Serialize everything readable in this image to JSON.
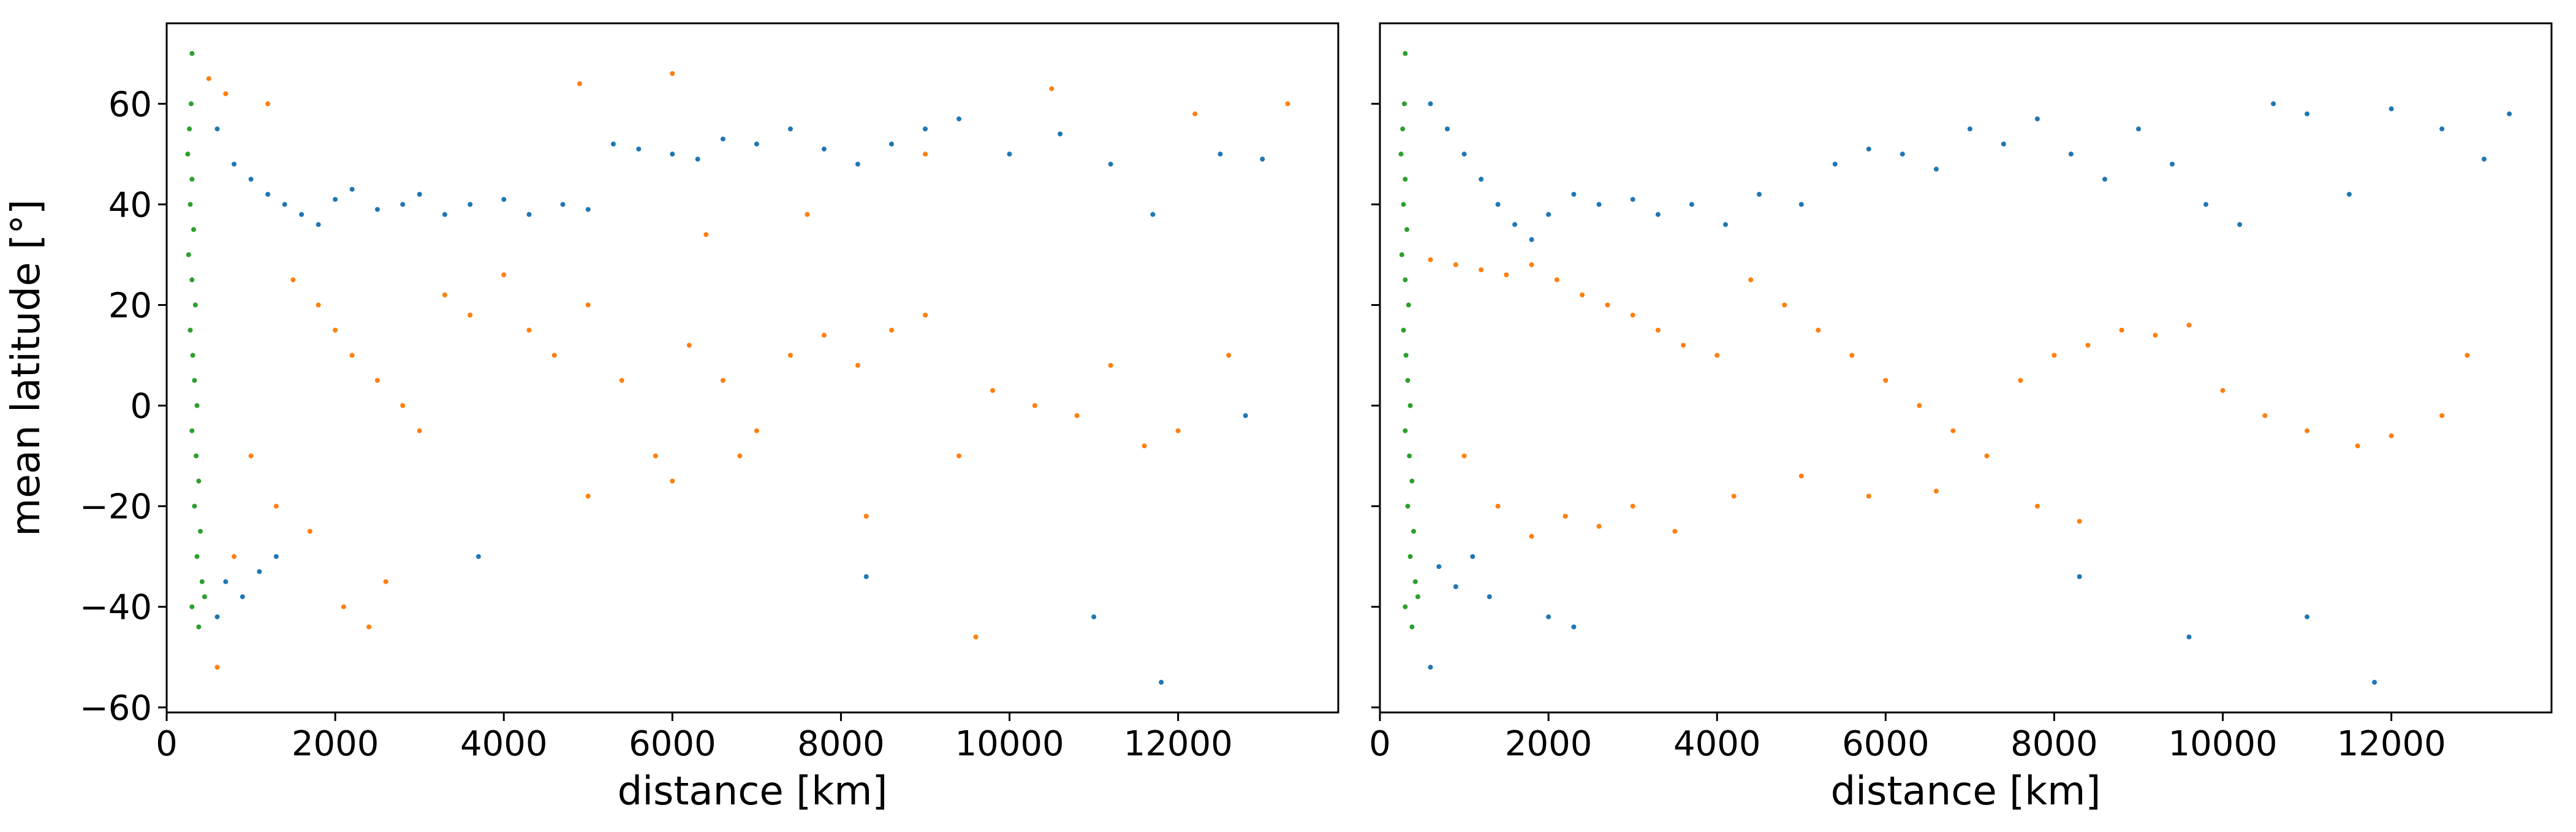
{
  "chart_data": [
    {
      "type": "scatter",
      "panel": "left",
      "xlabel": "distance [km]",
      "ylabel": "mean latitude [°]",
      "xlim": [
        0,
        13900
      ],
      "ylim": [
        -61,
        76
      ],
      "xticks": [
        0,
        2000,
        4000,
        6000,
        8000,
        10000,
        12000
      ],
      "yticks": [
        -60,
        -40,
        -20,
        0,
        20,
        40,
        60
      ],
      "xtick_labels": [
        "0",
        "2000",
        "4000",
        "6000",
        "8000",
        "10000",
        "12000"
      ],
      "ytick_labels": [
        "−60",
        "−40",
        "−20",
        "0",
        "20",
        "40",
        "60"
      ],
      "show_ytick_labels": true,
      "grid": false,
      "series": [
        {
          "color": "#1f77b4",
          "points": [
            [
              600,
              55
            ],
            [
              800,
              48
            ],
            [
              1000,
              45
            ],
            [
              1200,
              42
            ],
            [
              1400,
              40
            ],
            [
              1600,
              38
            ],
            [
              1800,
              36
            ],
            [
              2000,
              41
            ],
            [
              2200,
              43
            ],
            [
              2500,
              39
            ],
            [
              2800,
              40
            ],
            [
              3000,
              42
            ],
            [
              3300,
              38
            ],
            [
              3600,
              40
            ],
            [
              4000,
              41
            ],
            [
              4300,
              38
            ],
            [
              4700,
              40
            ],
            [
              5000,
              39
            ],
            [
              5300,
              52
            ],
            [
              5600,
              51
            ],
            [
              6000,
              50
            ],
            [
              6300,
              49
            ],
            [
              6600,
              53
            ],
            [
              7000,
              52
            ],
            [
              7400,
              55
            ],
            [
              7800,
              51
            ],
            [
              8200,
              48
            ],
            [
              8600,
              52
            ],
            [
              9000,
              55
            ],
            [
              9400,
              57
            ],
            [
              10000,
              50
            ],
            [
              10600,
              54
            ],
            [
              11200,
              48
            ],
            [
              11700,
              38
            ],
            [
              12500,
              50
            ],
            [
              13000,
              49
            ],
            [
              700,
              -35
            ],
            [
              900,
              -38
            ],
            [
              1100,
              -33
            ],
            [
              1300,
              -30
            ],
            [
              600,
              -42
            ],
            [
              8300,
              -34
            ],
            [
              11000,
              -42
            ],
            [
              11800,
              -55
            ],
            [
              12800,
              -2
            ],
            [
              3700,
              -30
            ]
          ]
        },
        {
          "color": "#ff7f0e",
          "points": [
            [
              500,
              65
            ],
            [
              700,
              62
            ],
            [
              1200,
              60
            ],
            [
              1500,
              25
            ],
            [
              1800,
              20
            ],
            [
              2000,
              15
            ],
            [
              2200,
              10
            ],
            [
              2500,
              5
            ],
            [
              2800,
              0
            ],
            [
              3000,
              -5
            ],
            [
              3300,
              22
            ],
            [
              3600,
              18
            ],
            [
              4000,
              26
            ],
            [
              4300,
              15
            ],
            [
              4600,
              10
            ],
            [
              5000,
              20
            ],
            [
              5400,
              5
            ],
            [
              5800,
              -10
            ],
            [
              6200,
              12
            ],
            [
              6600,
              5
            ],
            [
              7000,
              -5
            ],
            [
              7400,
              10
            ],
            [
              7800,
              14
            ],
            [
              8200,
              8
            ],
            [
              8600,
              15
            ],
            [
              9000,
              18
            ],
            [
              9400,
              -10
            ],
            [
              9800,
              3
            ],
            [
              10300,
              0
            ],
            [
              10800,
              -2
            ],
            [
              11200,
              8
            ],
            [
              11600,
              -8
            ],
            [
              12000,
              -5
            ],
            [
              12600,
              10
            ],
            [
              13300,
              60
            ],
            [
              1000,
              -10
            ],
            [
              1300,
              -20
            ],
            [
              1700,
              -25
            ],
            [
              2100,
              -40
            ],
            [
              2400,
              -44
            ],
            [
              800,
              -30
            ],
            [
              2600,
              -35
            ],
            [
              5000,
              -18
            ],
            [
              6000,
              -15
            ],
            [
              6800,
              -10
            ],
            [
              8300,
              -22
            ],
            [
              9600,
              -46
            ],
            [
              600,
              -52
            ],
            [
              10500,
              63
            ],
            [
              12200,
              58
            ],
            [
              7600,
              38
            ],
            [
              9000,
              50
            ],
            [
              6400,
              34
            ],
            [
              4900,
              64
            ],
            [
              6000,
              66
            ]
          ]
        },
        {
          "color": "#2ca02c",
          "points": [
            [
              250,
              50
            ],
            [
              300,
              45
            ],
            [
              280,
              40
            ],
            [
              320,
              35
            ],
            [
              260,
              30
            ],
            [
              300,
              25
            ],
            [
              340,
              20
            ],
            [
              280,
              15
            ],
            [
              310,
              10
            ],
            [
              330,
              5
            ],
            [
              360,
              0
            ],
            [
              300,
              -5
            ],
            [
              350,
              -10
            ],
            [
              380,
              -15
            ],
            [
              330,
              -20
            ],
            [
              400,
              -25
            ],
            [
              360,
              -30
            ],
            [
              420,
              -35
            ],
            [
              300,
              -40
            ],
            [
              380,
              -44
            ],
            [
              450,
              -38
            ],
            [
              270,
              55
            ],
            [
              290,
              60
            ],
            [
              300,
              70
            ]
          ]
        }
      ]
    },
    {
      "type": "scatter",
      "panel": "right",
      "xlabel": "distance [km]",
      "ylabel": "",
      "xlim": [
        0,
        13900
      ],
      "ylim": [
        -61,
        76
      ],
      "xticks": [
        0,
        2000,
        4000,
        6000,
        8000,
        10000,
        12000
      ],
      "yticks": [
        -60,
        -40,
        -20,
        0,
        20,
        40,
        60
      ],
      "xtick_labels": [
        "0",
        "2000",
        "4000",
        "6000",
        "8000",
        "10000",
        "12000"
      ],
      "ytick_labels": [],
      "show_ytick_labels": false,
      "grid": false,
      "series": [
        {
          "color": "#1f77b4",
          "points": [
            [
              600,
              60
            ],
            [
              800,
              55
            ],
            [
              1000,
              50
            ],
            [
              1200,
              45
            ],
            [
              1400,
              40
            ],
            [
              1600,
              36
            ],
            [
              1800,
              33
            ],
            [
              2000,
              38
            ],
            [
              2300,
              42
            ],
            [
              2600,
              40
            ],
            [
              3000,
              41
            ],
            [
              3300,
              38
            ],
            [
              3700,
              40
            ],
            [
              4100,
              36
            ],
            [
              4500,
              42
            ],
            [
              5000,
              40
            ],
            [
              5400,
              48
            ],
            [
              5800,
              51
            ],
            [
              6200,
              50
            ],
            [
              6600,
              47
            ],
            [
              7000,
              55
            ],
            [
              7400,
              52
            ],
            [
              7800,
              57
            ],
            [
              8200,
              50
            ],
            [
              8600,
              45
            ],
            [
              9000,
              55
            ],
            [
              9400,
              48
            ],
            [
              9800,
              40
            ],
            [
              10200,
              36
            ],
            [
              10600,
              60
            ],
            [
              11000,
              58
            ],
            [
              11500,
              42
            ],
            [
              12000,
              59
            ],
            [
              12600,
              55
            ],
            [
              13100,
              49
            ],
            [
              13400,
              58
            ],
            [
              700,
              -32
            ],
            [
              900,
              -36
            ],
            [
              1100,
              -30
            ],
            [
              1300,
              -38
            ],
            [
              2000,
              -42
            ],
            [
              2300,
              -44
            ],
            [
              8300,
              -34
            ],
            [
              9600,
              -46
            ],
            [
              11000,
              -42
            ],
            [
              11800,
              -55
            ],
            [
              600,
              -52
            ]
          ]
        },
        {
          "color": "#ff7f0e",
          "points": [
            [
              600,
              29
            ],
            [
              900,
              28
            ],
            [
              1200,
              27
            ],
            [
              1500,
              26
            ],
            [
              1800,
              28
            ],
            [
              2100,
              25
            ],
            [
              2400,
              22
            ],
            [
              2700,
              20
            ],
            [
              3000,
              18
            ],
            [
              3300,
              15
            ],
            [
              3600,
              12
            ],
            [
              4000,
              10
            ],
            [
              4400,
              25
            ],
            [
              4800,
              20
            ],
            [
              5200,
              15
            ],
            [
              5600,
              10
            ],
            [
              6000,
              5
            ],
            [
              6400,
              0
            ],
            [
              6800,
              -5
            ],
            [
              7200,
              -10
            ],
            [
              7600,
              5
            ],
            [
              8000,
              10
            ],
            [
              8400,
              12
            ],
            [
              8800,
              15
            ],
            [
              9200,
              14
            ],
            [
              9600,
              16
            ],
            [
              10000,
              3
            ],
            [
              10500,
              -2
            ],
            [
              11000,
              -5
            ],
            [
              11600,
              -8
            ],
            [
              12000,
              -6
            ],
            [
              12600,
              -2
            ],
            [
              12900,
              10
            ],
            [
              1000,
              -10
            ],
            [
              1400,
              -20
            ],
            [
              1800,
              -26
            ],
            [
              2200,
              -22
            ],
            [
              2600,
              -24
            ],
            [
              3000,
              -20
            ],
            [
              3500,
              -25
            ],
            [
              4200,
              -18
            ],
            [
              5000,
              -14
            ],
            [
              5800,
              -18
            ],
            [
              6600,
              -17
            ],
            [
              7800,
              -20
            ],
            [
              8300,
              -23
            ]
          ]
        },
        {
          "color": "#2ca02c",
          "points": [
            [
              250,
              50
            ],
            [
              300,
              45
            ],
            [
              280,
              40
            ],
            [
              320,
              35
            ],
            [
              260,
              30
            ],
            [
              300,
              25
            ],
            [
              340,
              20
            ],
            [
              280,
              15
            ],
            [
              310,
              10
            ],
            [
              330,
              5
            ],
            [
              360,
              0
            ],
            [
              300,
              -5
            ],
            [
              350,
              -10
            ],
            [
              380,
              -15
            ],
            [
              330,
              -20
            ],
            [
              400,
              -25
            ],
            [
              360,
              -30
            ],
            [
              420,
              -35
            ],
            [
              300,
              -40
            ],
            [
              380,
              -44
            ],
            [
              450,
              -38
            ],
            [
              270,
              55
            ],
            [
              290,
              60
            ],
            [
              300,
              70
            ]
          ]
        }
      ]
    }
  ]
}
